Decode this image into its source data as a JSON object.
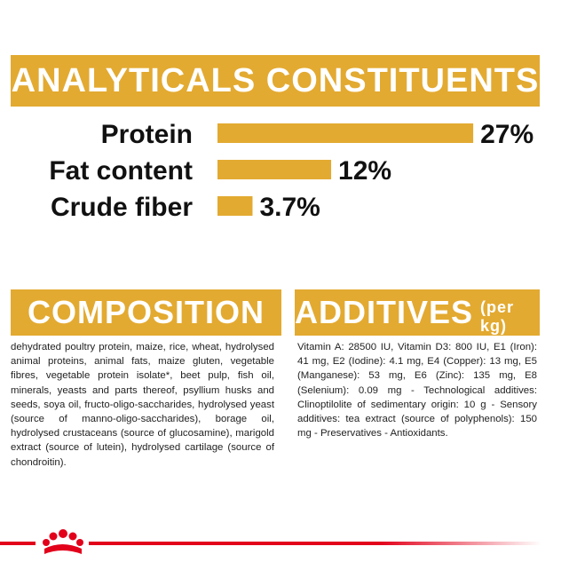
{
  "chart_data": {
    "type": "bar",
    "orientation": "horizontal",
    "title": "ANALYTICALS CONSTITUENTS",
    "categories": [
      "Protein",
      "Fat content",
      "Crude fiber"
    ],
    "values": [
      27,
      12,
      3.7
    ],
    "value_labels": [
      "27%",
      "12%",
      "3.7%"
    ],
    "color": "#e3aa31"
  },
  "composition": {
    "title": "COMPOSITION",
    "text": "dehydrated poultry protein, maize, rice, wheat, hydrolysed animal proteins, animal fats, maize gluten, vegetable fibres, vegetable protein isolate*, beet pulp, fish oil, minerals, yeasts and parts thereof, psyllium husks and seeds, soya oil, fructo-oligo-saccharides, hydrolysed yeast (source of manno-oligo-saccharides), borage oil, hydrolysed crustaceans (source of glucosamine), marigold extract (source of lutein), hydrolysed cartilage (source of chondroitin)."
  },
  "additives": {
    "title": "ADDITIVES",
    "unit": "(per kg)",
    "text": "Vitamin A: 28500 IU, Vitamin D3: 800 IU, E1 (Iron): 41 mg, E2 (Iodine): 4.1 mg, E4 (Copper): 13 mg, E5 (Manganese): 53 mg, E6 (Zinc): 135 mg, E8 (Selenium): 0.09 mg - Technological additives: Clinoptilolite of sedimentary origin: 10 g - Sensory additives: tea extract (source of polyphenols): 150 mg - Preservatives - Antioxidants."
  }
}
